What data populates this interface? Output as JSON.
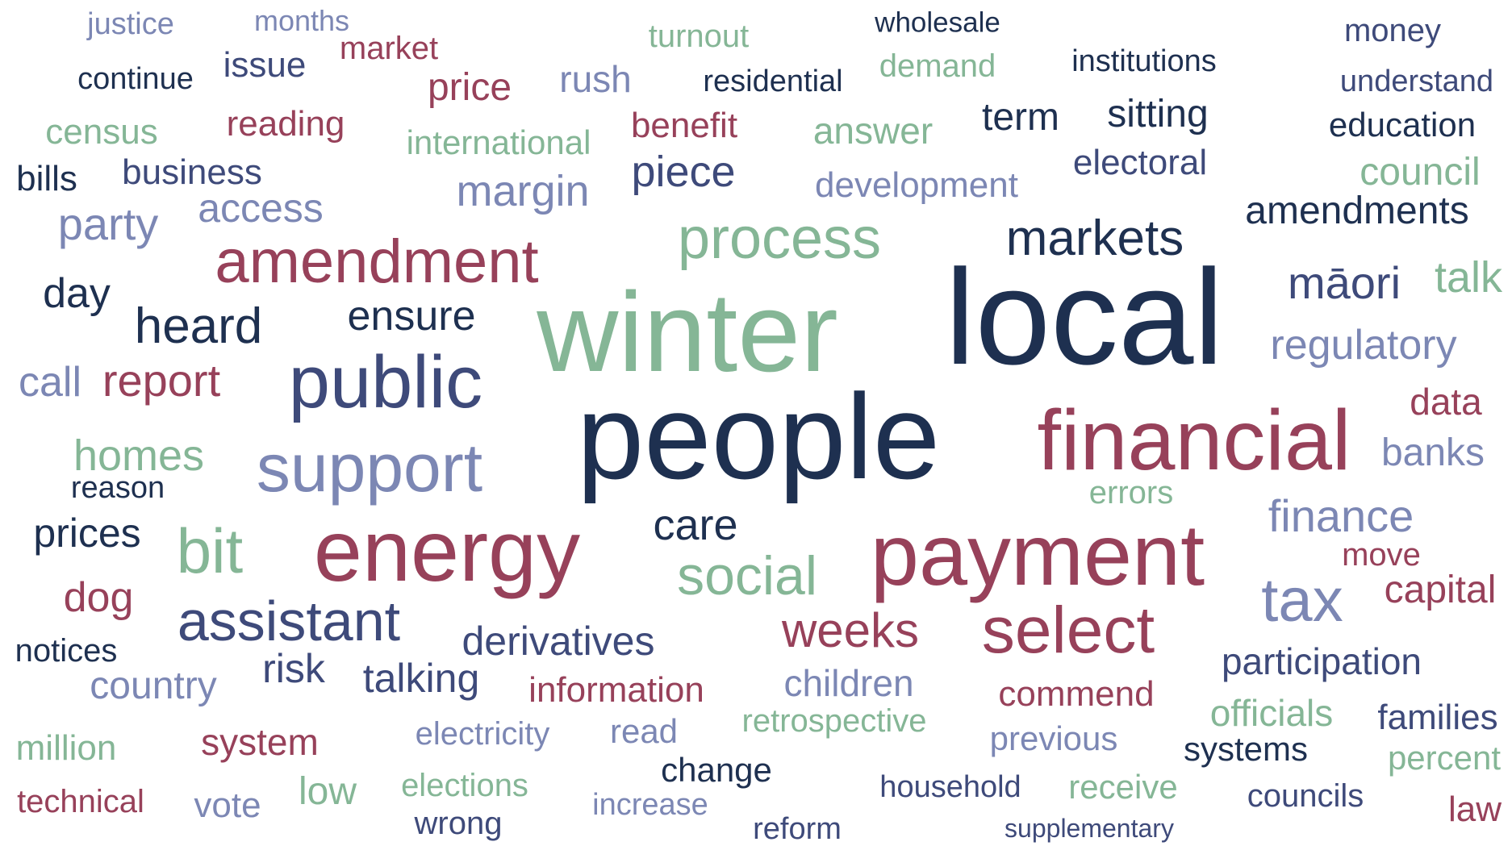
{
  "words": [
    {
      "text": "justice",
      "color": "lav"
    },
    {
      "text": "months",
      "color": "lav"
    },
    {
      "text": "market",
      "color": "red"
    },
    {
      "text": "turnout",
      "color": "green"
    },
    {
      "text": "wholesale",
      "color": "navy"
    },
    {
      "text": "money",
      "color": "slate"
    },
    {
      "text": "issue",
      "color": "slate"
    },
    {
      "text": "continue",
      "color": "navy"
    },
    {
      "text": "price",
      "color": "red"
    },
    {
      "text": "rush",
      "color": "lav"
    },
    {
      "text": "residential",
      "color": "navy"
    },
    {
      "text": "demand",
      "color": "green"
    },
    {
      "text": "institutions",
      "color": "navy"
    },
    {
      "text": "understand",
      "color": "slate"
    },
    {
      "text": "census",
      "color": "green"
    },
    {
      "text": "reading",
      "color": "red"
    },
    {
      "text": "international",
      "color": "green"
    },
    {
      "text": "benefit",
      "color": "red"
    },
    {
      "text": "answer",
      "color": "green"
    },
    {
      "text": "term",
      "color": "navy"
    },
    {
      "text": "sitting",
      "color": "navy"
    },
    {
      "text": "education",
      "color": "navy"
    },
    {
      "text": "bills",
      "color": "navy"
    },
    {
      "text": "business",
      "color": "slate"
    },
    {
      "text": "margin",
      "color": "lav"
    },
    {
      "text": "piece",
      "color": "slate"
    },
    {
      "text": "development",
      "color": "lav"
    },
    {
      "text": "electoral",
      "color": "slate"
    },
    {
      "text": "council",
      "color": "green"
    },
    {
      "text": "access",
      "color": "lav"
    },
    {
      "text": "party",
      "color": "lav"
    },
    {
      "text": "amendments",
      "color": "navy"
    },
    {
      "text": "process",
      "color": "green"
    },
    {
      "text": "amendment",
      "color": "red"
    },
    {
      "text": "markets",
      "color": "navy"
    },
    {
      "text": "day",
      "color": "navy"
    },
    {
      "text": "local",
      "color": "navy"
    },
    {
      "text": "māori",
      "color": "slate"
    },
    {
      "text": "talk",
      "color": "green"
    },
    {
      "text": "winter",
      "color": "green"
    },
    {
      "text": "heard",
      "color": "navy"
    },
    {
      "text": "ensure",
      "color": "navy"
    },
    {
      "text": "regulatory",
      "color": "lav"
    },
    {
      "text": "public",
      "color": "slate"
    },
    {
      "text": "call",
      "color": "lav"
    },
    {
      "text": "report",
      "color": "red"
    },
    {
      "text": "people",
      "color": "navy"
    },
    {
      "text": "financial",
      "color": "red"
    },
    {
      "text": "data",
      "color": "red"
    },
    {
      "text": "homes",
      "color": "green"
    },
    {
      "text": "banks",
      "color": "lav"
    },
    {
      "text": "support",
      "color": "lav"
    },
    {
      "text": "reason",
      "color": "navy"
    },
    {
      "text": "errors",
      "color": "green"
    },
    {
      "text": "finance",
      "color": "lav"
    },
    {
      "text": "prices",
      "color": "navy"
    },
    {
      "text": "bit",
      "color": "green"
    },
    {
      "text": "energy",
      "color": "red"
    },
    {
      "text": "care",
      "color": "navy"
    },
    {
      "text": "payment",
      "color": "red"
    },
    {
      "text": "move",
      "color": "red"
    },
    {
      "text": "social",
      "color": "green"
    },
    {
      "text": "dog",
      "color": "red"
    },
    {
      "text": "tax",
      "color": "lav"
    },
    {
      "text": "capital",
      "color": "red"
    },
    {
      "text": "assistant",
      "color": "slate"
    },
    {
      "text": "weeks",
      "color": "red"
    },
    {
      "text": "select",
      "color": "red"
    },
    {
      "text": "derivatives",
      "color": "slate"
    },
    {
      "text": "notices",
      "color": "navy"
    },
    {
      "text": "participation",
      "color": "slate"
    },
    {
      "text": "risk",
      "color": "slate"
    },
    {
      "text": "talking",
      "color": "slate"
    },
    {
      "text": "country",
      "color": "lav"
    },
    {
      "text": "information",
      "color": "red"
    },
    {
      "text": "children",
      "color": "lav"
    },
    {
      "text": "commend",
      "color": "red"
    },
    {
      "text": "officials",
      "color": "green"
    },
    {
      "text": "families",
      "color": "slate"
    },
    {
      "text": "retrospective",
      "color": "green"
    },
    {
      "text": "electricity",
      "color": "lav"
    },
    {
      "text": "read",
      "color": "lav"
    },
    {
      "text": "previous",
      "color": "lav"
    },
    {
      "text": "systems",
      "color": "navy"
    },
    {
      "text": "million",
      "color": "green"
    },
    {
      "text": "system",
      "color": "red"
    },
    {
      "text": "percent",
      "color": "green"
    },
    {
      "text": "change",
      "color": "navy"
    },
    {
      "text": "low",
      "color": "green"
    },
    {
      "text": "elections",
      "color": "green"
    },
    {
      "text": "household",
      "color": "slate"
    },
    {
      "text": "receive",
      "color": "green"
    },
    {
      "text": "councils",
      "color": "slate"
    },
    {
      "text": "law",
      "color": "red"
    },
    {
      "text": "technical",
      "color": "red"
    },
    {
      "text": "vote",
      "color": "lav"
    },
    {
      "text": "increase",
      "color": "lav"
    },
    {
      "text": "wrong",
      "color": "slate"
    },
    {
      "text": "reform",
      "color": "slate"
    },
    {
      "text": "supplementary",
      "color": "slate"
    }
  ]
}
